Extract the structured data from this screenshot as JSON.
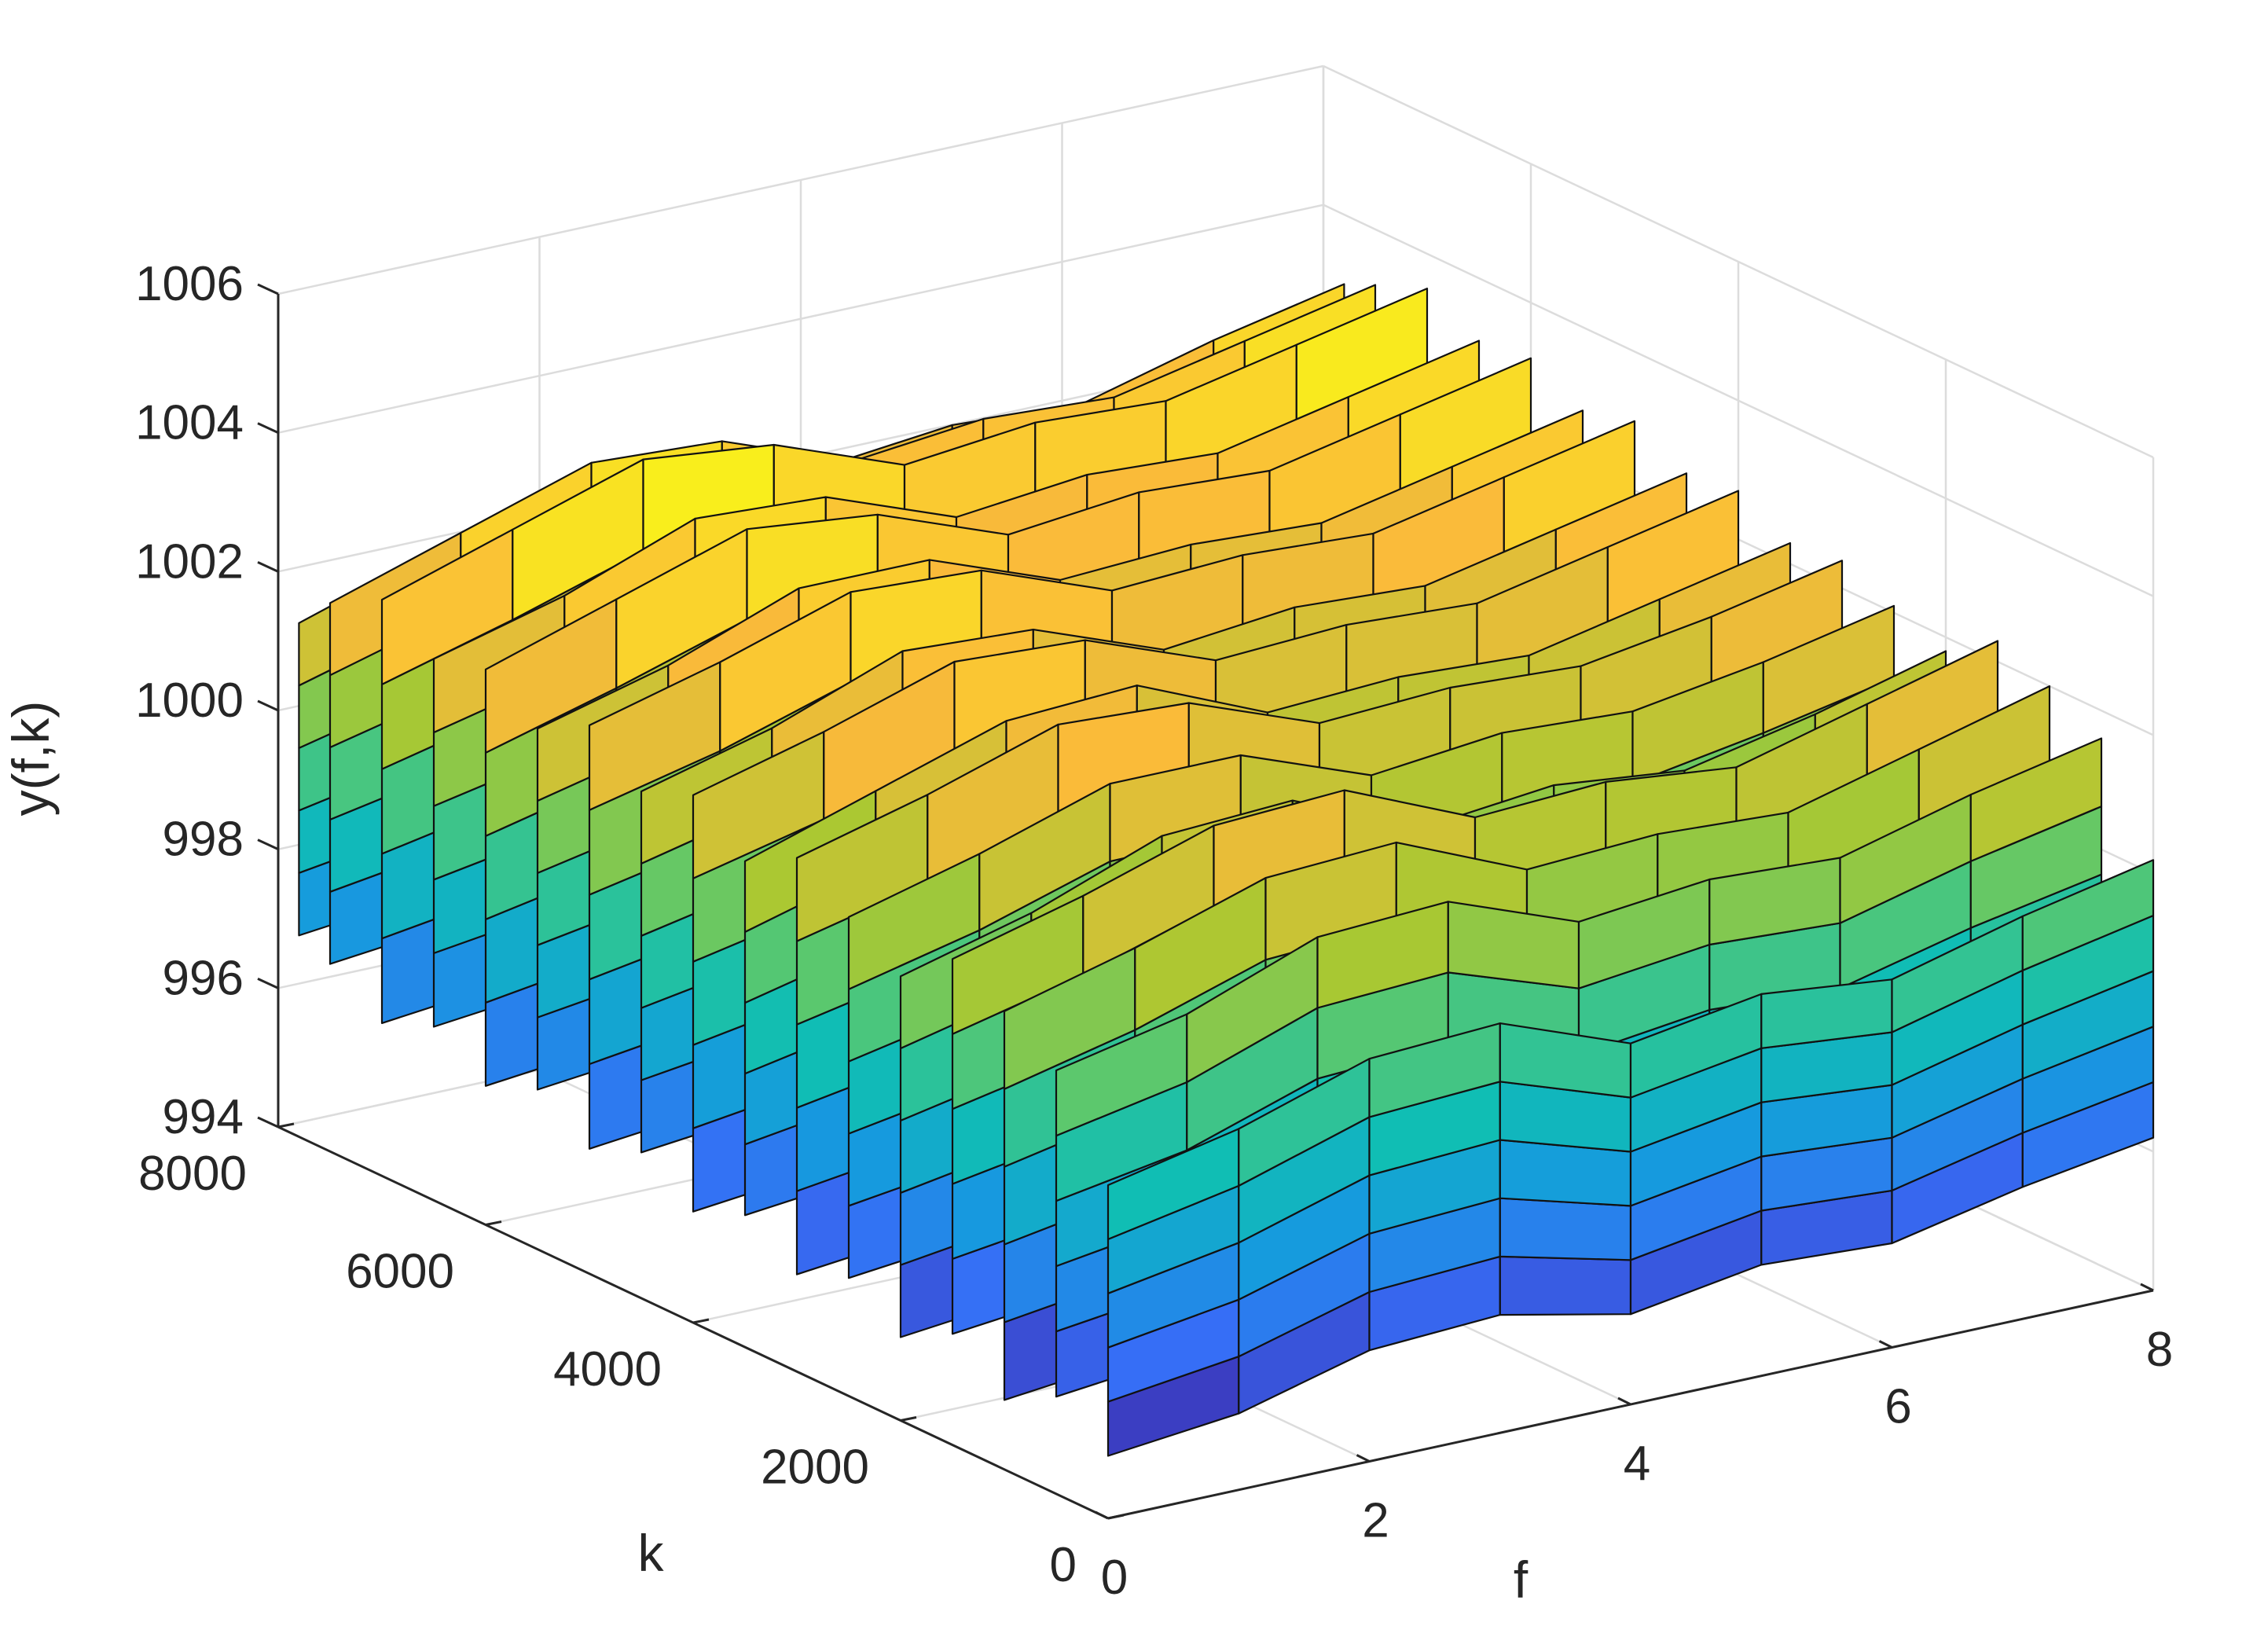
{
  "chart_data": {
    "type": "surface-3d",
    "title": "",
    "xlabel": "f",
    "ylabel": "k",
    "zlabel": "y(f,k)",
    "xlim": [
      0,
      8
    ],
    "ylim": [
      0,
      8000
    ],
    "zlim": [
      994,
      1006
    ],
    "x_ticks": [
      "0",
      "2",
      "4",
      "6",
      "8"
    ],
    "y_ticks": [
      "0",
      "2000",
      "4000",
      "6000",
      "8000"
    ],
    "z_ticks": [
      "994",
      "996",
      "998",
      "1000",
      "1002",
      "1004",
      "1006"
    ],
    "grid": true,
    "colormap": "parula",
    "f": [
      0,
      1,
      2,
      3,
      4,
      5,
      6,
      7,
      8
    ],
    "k_slices": [
      {
        "k": 0,
        "top": [
          998.8,
          999.2,
          999.8,
          999.9,
          999.2,
          999.5,
          999.3,
          999.8,
          1000.2
        ],
        "bottom": [
          994.9,
          995.1,
          995.6,
          995.7,
          995.3,
          995.6,
          995.5,
          995.9,
          996.2
        ]
      },
      {
        "k": 500,
        "top": [
          1000.1,
          1000.5,
          1001.2,
          1001.3,
          1000.6,
          1000.8,
          1000.7,
          1001.2,
          1001.6
        ],
        "bottom": [
          995.4,
          995.6,
          996.1,
          996.2,
          995.8,
          996.1,
          996.0,
          996.4,
          996.7
        ]
      },
      {
        "k": 1000,
        "top": [
          1000.6,
          1001.1,
          1001.7,
          1001.8,
          1001.0,
          1001.1,
          1001.0,
          1001.5,
          1002.0
        ],
        "bottom": [
          995.0,
          995.2,
          995.8,
          995.9,
          995.4,
          995.6,
          995.5,
          995.9,
          996.3
        ]
      },
      {
        "k": 1500,
        "top": [
          1001.0,
          1001.5,
          1002.1,
          1002.2,
          1001.4,
          1001.5,
          1001.3,
          1001.8,
          1002.3
        ],
        "bottom": [
          995.6,
          995.8,
          996.3,
          996.4,
          996.0,
          996.2,
          996.1,
          996.5,
          996.8
        ]
      },
      {
        "k": 2000,
        "top": [
          1000.4,
          1000.9,
          1001.6,
          1001.7,
          1000.9,
          1001.1,
          1000.9,
          1001.3,
          1001.8
        ],
        "bottom": [
          995.2,
          995.4,
          995.9,
          996.0,
          995.6,
          995.8,
          995.7,
          996.1,
          996.4
        ]
      },
      {
        "k": 2500,
        "top": [
          1000.9,
          1001.4,
          1002.0,
          1002.0,
          1001.3,
          1001.5,
          1001.4,
          1001.7,
          1002.1
        ],
        "bottom": [
          995.7,
          995.9,
          996.4,
          996.5,
          996.1,
          996.3,
          996.2,
          996.6,
          996.9
        ]
      },
      {
        "k": 3000,
        "top": [
          1001.4,
          1001.9,
          1002.5,
          1002.4,
          1001.7,
          1001.8,
          1001.7,
          1002.0,
          1002.4
        ],
        "bottom": [
          995.4,
          995.6,
          996.1,
          996.2,
          995.8,
          996.0,
          995.9,
          996.3,
          996.6
        ]
      },
      {
        "k": 3500,
        "top": [
          1001.0,
          1001.6,
          1002.2,
          1002.3,
          1001.5,
          1001.6,
          1001.5,
          1001.9,
          1002.3
        ],
        "bottom": [
          995.9,
          996.1,
          996.6,
          996.7,
          996.3,
          996.5,
          996.4,
          996.8,
          997.1
        ]
      },
      {
        "k": 4000,
        "top": [
          1001.6,
          1002.1,
          1002.7,
          1002.6,
          1001.9,
          1002.0,
          1001.9,
          1002.3,
          1002.7
        ],
        "bottom": [
          995.6,
          995.8,
          996.3,
          996.4,
          996.0,
          996.2,
          996.1,
          996.5,
          996.8
        ]
      },
      {
        "k": 4500,
        "top": [
          1001.3,
          1001.8,
          1002.5,
          1002.4,
          1001.7,
          1001.9,
          1001.8,
          1002.2,
          1002.6
        ],
        "bottom": [
          996.1,
          996.3,
          996.8,
          996.9,
          996.5,
          996.7,
          996.6,
          997.0,
          997.3
        ]
      },
      {
        "k": 5000,
        "top": [
          1001.9,
          1002.4,
          1003.0,
          1002.9,
          1002.2,
          1002.3,
          1002.2,
          1002.6,
          1003.0
        ],
        "bottom": [
          995.8,
          996.0,
          996.5,
          996.6,
          996.2,
          996.4,
          996.3,
          996.7,
          997.0
        ]
      },
      {
        "k": 5500,
        "top": [
          1001.5,
          1002.0,
          1002.7,
          1002.7,
          1002.0,
          1002.1,
          1002.0,
          1002.4,
          1002.8
        ],
        "bottom": [
          996.3,
          996.5,
          997.0,
          997.1,
          996.7,
          996.9,
          996.8,
          997.2,
          997.5
        ]
      },
      {
        "k": 6000,
        "top": [
          1002.0,
          1002.6,
          1003.2,
          1003.0,
          1002.3,
          1002.5,
          1002.4,
          1002.8,
          1003.2
        ],
        "bottom": [
          996.0,
          996.2,
          996.7,
          996.8,
          996.4,
          996.6,
          996.5,
          996.9,
          997.2
        ]
      },
      {
        "k": 6500,
        "top": [
          1001.8,
          1002.3,
          1003.0,
          1002.9,
          1002.2,
          1002.4,
          1002.3,
          1002.7,
          1003.1
        ],
        "bottom": [
          996.5,
          996.7,
          997.2,
          997.3,
          996.9,
          997.1,
          997.0,
          997.4,
          997.7
        ]
      },
      {
        "k": 7000,
        "top": [
          1002.3,
          1002.9,
          1003.5,
          1003.3,
          1002.6,
          1002.8,
          1002.7,
          1003.1,
          1003.5
        ],
        "bottom": [
          996.2,
          996.4,
          996.9,
          997.0,
          996.6,
          996.8,
          996.7,
          997.1,
          997.4
        ]
      },
      {
        "k": 7500,
        "top": [
          1001.9,
          1002.5,
          1003.1,
          1003.0,
          1002.3,
          1002.5,
          1002.4,
          1002.8,
          1003.2
        ],
        "bottom": [
          996.7,
          996.9,
          997.4,
          997.5,
          997.1,
          997.3,
          997.2,
          997.6,
          997.9
        ]
      },
      {
        "k": 7800,
        "top": [
          1001.4,
          1002.0,
          1002.6,
          1002.6,
          1002.0,
          1002.2,
          1002.1,
          1002.6,
          1003.0
        ],
        "bottom": [
          996.9,
          997.1,
          997.6,
          997.7,
          997.3,
          997.5,
          997.4,
          997.8,
          998.1
        ]
      }
    ]
  }
}
